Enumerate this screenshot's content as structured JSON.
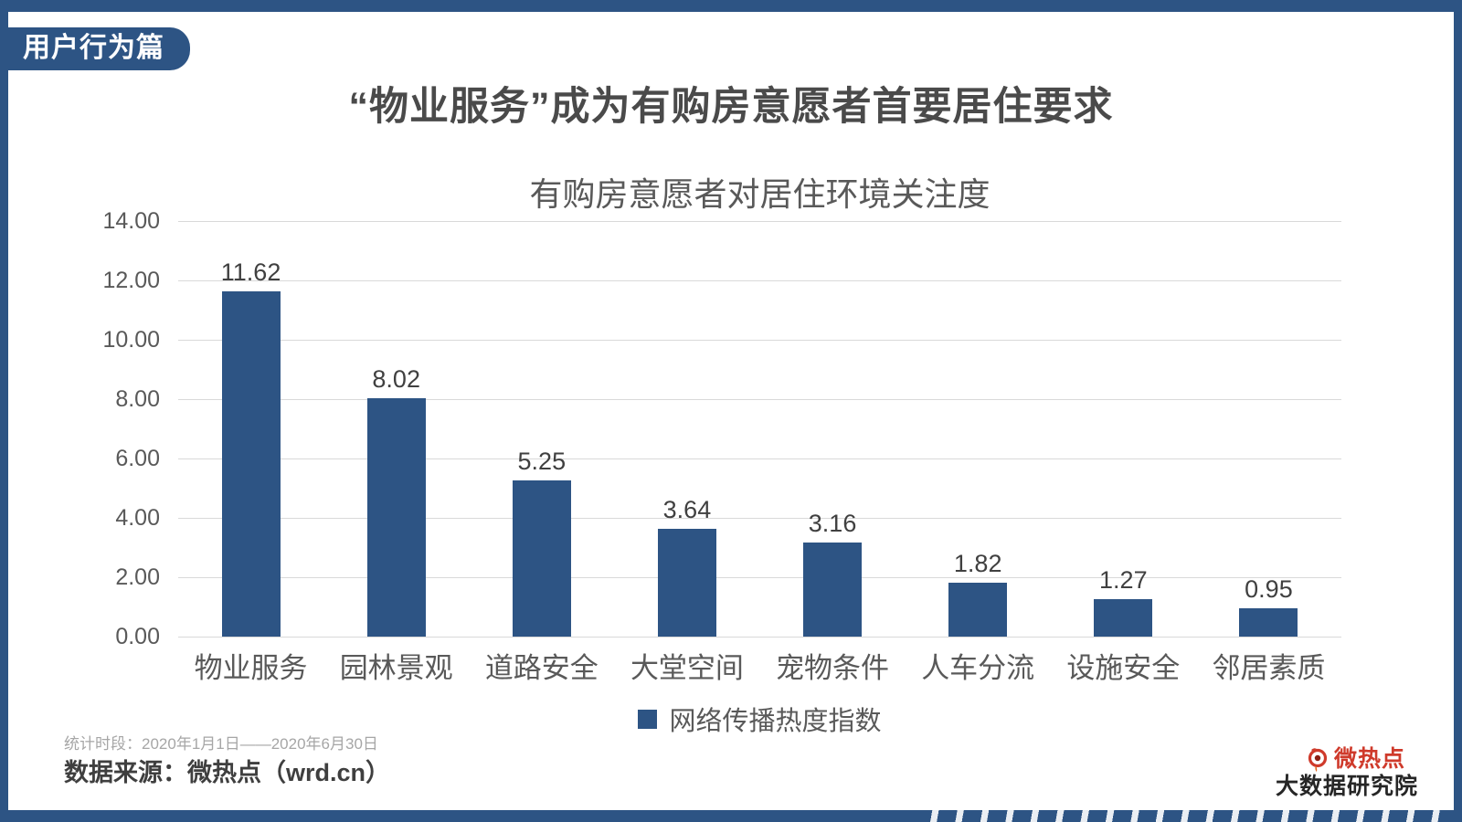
{
  "badge": {
    "label": "用户行为篇"
  },
  "title": "“物业服务”成为有购房意愿者首要居住要求",
  "chart_data": {
    "type": "bar",
    "title": "有购房意愿者对居住环境关注度",
    "categories": [
      "物业服务",
      "园林景观",
      "道路安全",
      "大堂空间",
      "宠物条件",
      "人车分流",
      "设施安全",
      "邻居素质"
    ],
    "values": [
      11.62,
      8.02,
      5.25,
      3.64,
      3.16,
      1.82,
      1.27,
      0.95
    ],
    "series_name": "网络传播热度指数",
    "ylim": [
      0,
      14
    ],
    "ytick_step": 2,
    "yticks": [
      "14.00",
      "12.00",
      "10.00",
      "8.00",
      "6.00",
      "4.00",
      "2.00",
      "0.00"
    ],
    "bar_color": "#2d5484",
    "grid": true,
    "legend_position": "bottom"
  },
  "legend": {
    "label": "网络传播热度指数",
    "swatch_color": "#2d5484"
  },
  "footer": {
    "period_label": "统计时段：2020年1月1日——2020年6月30日",
    "source_label": "数据来源：微热点（wrd.cn）"
  },
  "logo": {
    "brand": "微热点",
    "subbrand": "大数据研究院",
    "brand_color": "#cf3a2b"
  },
  "frame": {
    "accent_color": "#2d5484"
  }
}
